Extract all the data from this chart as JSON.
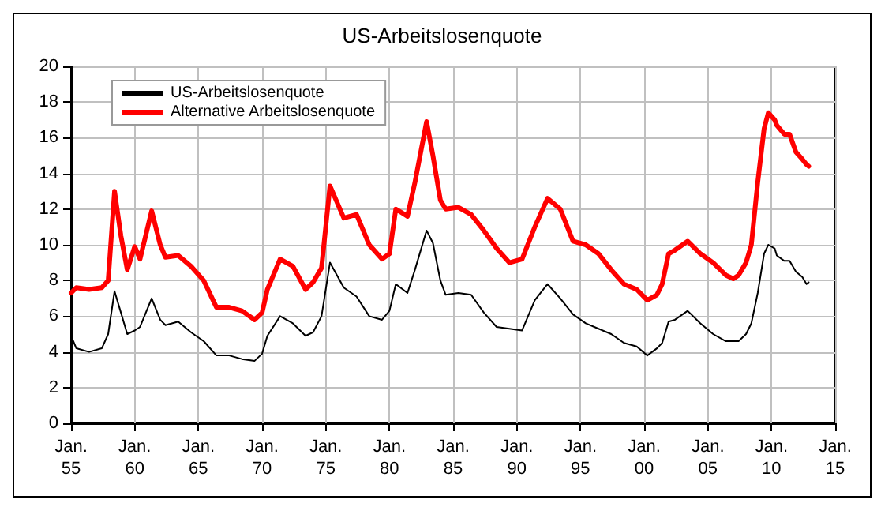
{
  "chart_data": {
    "type": "line",
    "title": "US-Arbeitslosenquote",
    "x": [
      "1955-01",
      "1955-06",
      "1956-06",
      "1957-06",
      "1957-12",
      "1958-06",
      "1958-12",
      "1959-06",
      "1960-01",
      "1960-06",
      "1961-05",
      "1962-01",
      "1962-06",
      "1963-06",
      "1964-06",
      "1965-06",
      "1966-06",
      "1967-06",
      "1968-06",
      "1969-06",
      "1970-01",
      "1970-06",
      "1971-06",
      "1972-06",
      "1973-06",
      "1974-01",
      "1974-09",
      "1975-05",
      "1976-06",
      "1977-06",
      "1978-06",
      "1979-06",
      "1980-01",
      "1980-07",
      "1981-06",
      "1982-01",
      "1982-12",
      "1983-06",
      "1984-01",
      "1984-06",
      "1985-06",
      "1986-06",
      "1987-06",
      "1988-06",
      "1989-06",
      "1990-06",
      "1991-06",
      "1992-06",
      "1993-06",
      "1994-06",
      "1995-06",
      "1996-06",
      "1997-06",
      "1998-06",
      "1999-06",
      "2000-04",
      "2001-01",
      "2001-06",
      "2001-12",
      "2002-06",
      "2003-06",
      "2004-06",
      "2005-06",
      "2006-06",
      "2007-01",
      "2007-06",
      "2008-01",
      "2008-06",
      "2008-12",
      "2009-06",
      "2009-10",
      "2010-04",
      "2010-06",
      "2011-01",
      "2011-06",
      "2011-12",
      "2012-06",
      "2012-10",
      "2012-12"
    ],
    "series": [
      {
        "name": "US-Arbeitslosenquote",
        "color": "#000000",
        "values": [
          4.9,
          4.2,
          4.0,
          4.2,
          5.0,
          7.4,
          6.2,
          5.0,
          5.2,
          5.4,
          7.0,
          5.8,
          5.5,
          5.7,
          5.1,
          4.6,
          3.8,
          3.8,
          3.6,
          3.5,
          3.9,
          4.9,
          6.0,
          5.6,
          4.9,
          5.1,
          6.0,
          9.0,
          7.6,
          7.1,
          6.0,
          5.8,
          6.3,
          7.8,
          7.3,
          8.6,
          10.8,
          10.1,
          8.0,
          7.2,
          7.3,
          7.2,
          6.2,
          5.4,
          5.3,
          5.2,
          6.9,
          7.8,
          7.0,
          6.1,
          5.6,
          5.3,
          5.0,
          4.5,
          4.3,
          3.8,
          4.2,
          4.5,
          5.7,
          5.8,
          6.3,
          5.6,
          5.0,
          4.6,
          4.6,
          4.6,
          5.0,
          5.6,
          7.3,
          9.5,
          10.0,
          9.8,
          9.4,
          9.1,
          9.1,
          8.5,
          8.2,
          7.8,
          7.9
        ]
      },
      {
        "name": "Alternative Arbeitslosenquote",
        "color": "#ff0000",
        "values": [
          7.3,
          7.6,
          7.5,
          7.6,
          8.0,
          13.0,
          10.5,
          8.6,
          9.9,
          9.2,
          11.9,
          10.0,
          9.3,
          9.4,
          8.8,
          8.0,
          6.5,
          6.5,
          6.3,
          5.8,
          6.2,
          7.5,
          9.2,
          8.8,
          7.5,
          7.9,
          8.7,
          13.3,
          11.5,
          11.7,
          10.0,
          9.2,
          9.5,
          12.0,
          11.6,
          13.5,
          16.9,
          15.0,
          12.5,
          12.0,
          12.1,
          11.7,
          10.8,
          9.8,
          9.0,
          9.2,
          11.0,
          12.6,
          12.0,
          10.2,
          10.0,
          9.5,
          8.6,
          7.8,
          7.5,
          6.9,
          7.2,
          7.8,
          9.5,
          9.7,
          10.2,
          9.5,
          9.0,
          8.3,
          8.1,
          8.3,
          9.0,
          10.0,
          13.5,
          16.5,
          17.4,
          17.0,
          16.7,
          16.2,
          16.2,
          15.2,
          14.8,
          14.5,
          14.4
        ]
      }
    ],
    "xlim": [
      "1955-01",
      "2015-01"
    ],
    "xticks": [
      {
        "value": "1955-01",
        "label": "Jan.\n55"
      },
      {
        "value": "1960-01",
        "label": "Jan.\n60"
      },
      {
        "value": "1965-01",
        "label": "Jan.\n65"
      },
      {
        "value": "1970-01",
        "label": "Jan.\n70"
      },
      {
        "value": "1975-01",
        "label": "Jan.\n75"
      },
      {
        "value": "1980-01",
        "label": "Jan.\n80"
      },
      {
        "value": "1985-01",
        "label": "Jan.\n85"
      },
      {
        "value": "1990-01",
        "label": "Jan.\n90"
      },
      {
        "value": "1995-01",
        "label": "Jan.\n95"
      },
      {
        "value": "2000-01",
        "label": "Jan.\n00"
      },
      {
        "value": "2005-01",
        "label": "Jan.\n05"
      },
      {
        "value": "2010-01",
        "label": "Jan.\n10"
      },
      {
        "value": "2015-01",
        "label": "Jan.\n15"
      }
    ],
    "ylim": [
      0,
      20
    ],
    "yticks": [
      0,
      2,
      4,
      6,
      8,
      10,
      12,
      14,
      16,
      18,
      20
    ],
    "grid": true,
    "legend": "top left",
    "marker": "none",
    "line_style": "solid"
  }
}
